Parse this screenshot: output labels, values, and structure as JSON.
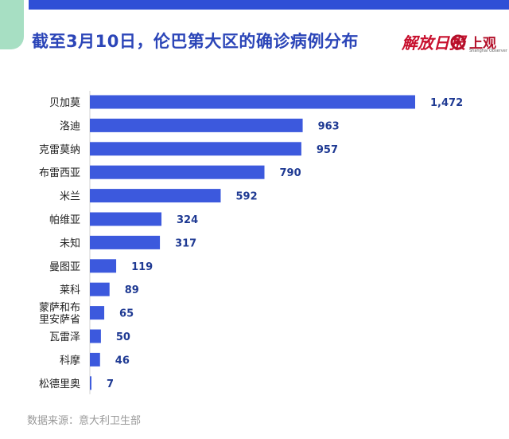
{
  "title": "截至3月10日，伦巴第大区的确诊病例分布",
  "branding": {
    "jiefang": "解放日报",
    "shangguan": "上观",
    "shangguan_sub": "Shanghai Observer"
  },
  "source": "数据来源：意大利卫生部",
  "colors": {
    "bar": "#3c59dd",
    "accent": "#2f4fd6",
    "title": "#2b45b8",
    "tab": "#a7dfc3",
    "label": "#222222",
    "value": "#1f3a93"
  },
  "chart_data": {
    "type": "bar",
    "orientation": "horizontal",
    "categories": [
      "贝加莫",
      "洛迪",
      "克雷莫纳",
      "布雷西亚",
      "米兰",
      "帕维亚",
      "未知",
      "曼图亚",
      "莱科",
      "蒙萨和布\n里安萨省",
      "瓦雷泽",
      "科摩",
      "松德里奥"
    ],
    "values": [
      1472,
      963,
      957,
      790,
      592,
      324,
      317,
      119,
      89,
      65,
      50,
      46,
      7
    ],
    "value_labels": [
      "1,472",
      "963",
      "957",
      "790",
      "592",
      "324",
      "317",
      "119",
      "89",
      "65",
      "50",
      "46",
      "7"
    ],
    "xlim": [
      0,
      1472
    ],
    "grid": false
  }
}
